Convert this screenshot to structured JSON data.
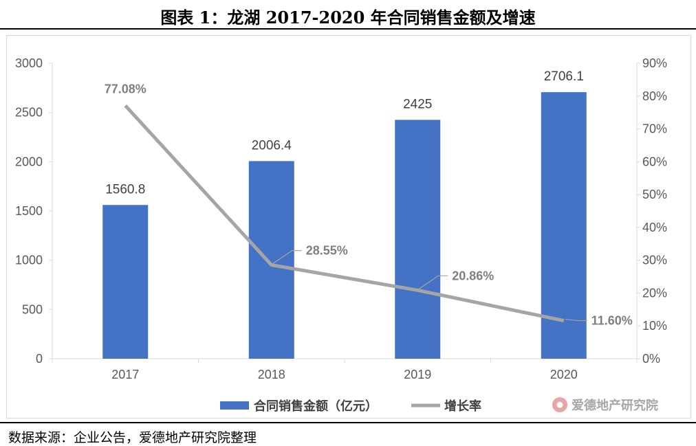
{
  "title": "图表 1：龙湖 2017-2020 年合同销售金额及增速",
  "source": "数据来源：企业公告，爱德地产研究院整理",
  "watermark": "爱德地产研究院",
  "colors": {
    "bar": "#4472c4",
    "line": "#a5a5a5",
    "axis": "#d9d9d9"
  },
  "chart_data": {
    "type": "bar",
    "categories": [
      "2017",
      "2018",
      "2019",
      "2020"
    ],
    "series": [
      {
        "name": "合同销售金额（亿元）",
        "type": "bar",
        "axis": "left",
        "values": [
          1560.8,
          2006.4,
          2425,
          2706.1
        ],
        "labels": [
          "1560.8",
          "2006.4",
          "2425",
          "2706.1"
        ]
      },
      {
        "name": "增长率",
        "type": "line",
        "axis": "right",
        "values": [
          77.08,
          28.55,
          20.86,
          11.6
        ],
        "labels": [
          "77.08%",
          "28.55%",
          "20.86%",
          "11.60%"
        ]
      }
    ],
    "y_left": {
      "min": 0,
      "max": 3000,
      "ticks": [
        "0",
        "500",
        "1000",
        "1500",
        "2000",
        "2500",
        "3000"
      ]
    },
    "y_right": {
      "min": 0,
      "max": 90,
      "ticks": [
        "0%",
        "10%",
        "20%",
        "30%",
        "40%",
        "50%",
        "60%",
        "70%",
        "80%",
        "90%"
      ]
    },
    "legend_position": "bottom",
    "grid": false
  }
}
